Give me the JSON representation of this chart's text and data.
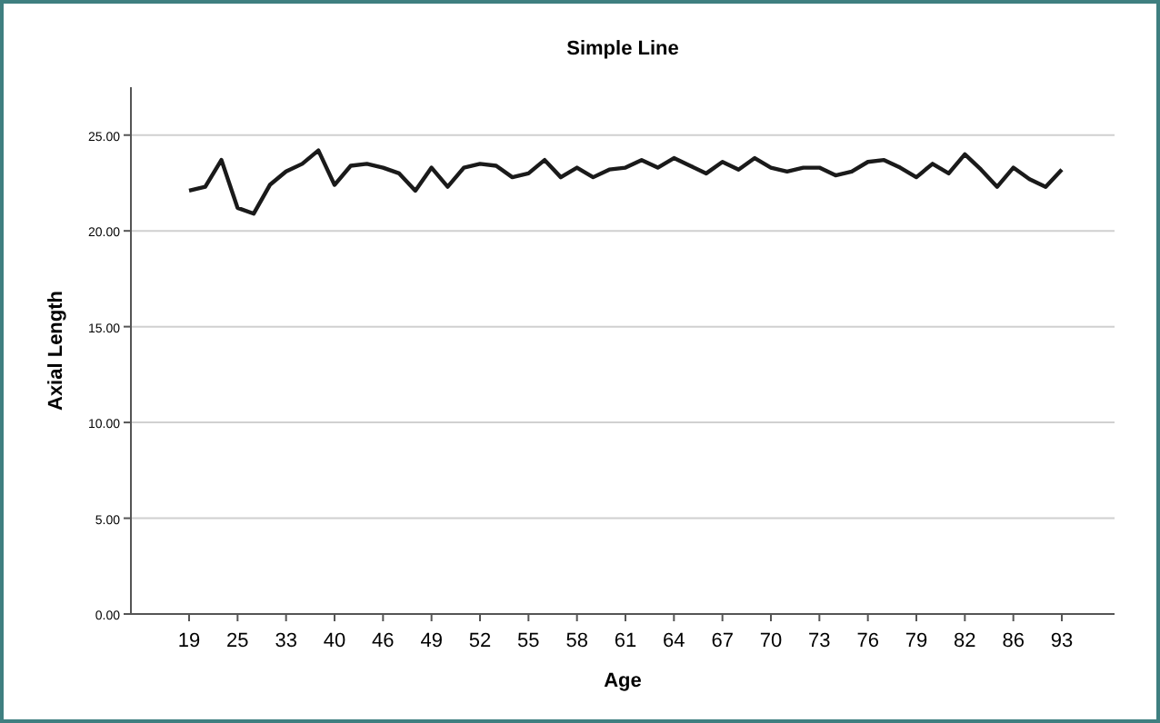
{
  "chart_data": {
    "type": "line",
    "title": "Simple Line",
    "xlabel": "Age",
    "ylabel": "Axial Length",
    "categories": [
      "19",
      null,
      null,
      "25",
      null,
      null,
      "33",
      null,
      null,
      "40",
      null,
      null,
      "46",
      null,
      null,
      "49",
      null,
      null,
      "52",
      null,
      null,
      "55",
      null,
      null,
      "58",
      null,
      null,
      "61",
      null,
      null,
      "64",
      null,
      null,
      "67",
      null,
      null,
      "70",
      null,
      null,
      "73",
      null,
      null,
      "76",
      null,
      null,
      "79",
      null,
      null,
      "82",
      null,
      null,
      "86",
      null,
      null,
      "93"
    ],
    "series": [
      {
        "color": "#1a1a1a",
        "values": [
          22.1,
          22.3,
          23.7,
          21.2,
          20.9,
          22.4,
          23.1,
          23.5,
          24.2,
          22.4,
          23.4,
          23.5,
          23.3,
          23.0,
          22.1,
          23.3,
          22.3,
          23.3,
          23.5,
          23.4,
          22.8,
          23.0,
          23.7,
          22.8,
          23.3,
          22.8,
          23.2,
          23.3,
          23.7,
          23.3,
          23.8,
          23.4,
          23.0,
          23.6,
          23.2,
          23.8,
          23.3,
          23.1,
          23.3,
          23.3,
          22.9,
          23.1,
          23.6,
          23.7,
          23.3,
          22.8,
          23.5,
          23.0,
          24.0,
          23.2,
          22.3,
          23.3,
          22.7,
          22.3,
          23.2
        ]
      }
    ],
    "ylim": [
      0,
      27.5
    ],
    "yticks": [
      {
        "value": 0,
        "label": "0.00"
      },
      {
        "value": 5,
        "label": "5.00"
      },
      {
        "value": 10,
        "label": "10.00"
      },
      {
        "value": 15,
        "label": "15.00"
      },
      {
        "value": 20,
        "label": "20.00"
      },
      {
        "value": 25,
        "label": "25.00"
      }
    ],
    "grid": "y",
    "marker": "none",
    "line_style": "solid"
  }
}
